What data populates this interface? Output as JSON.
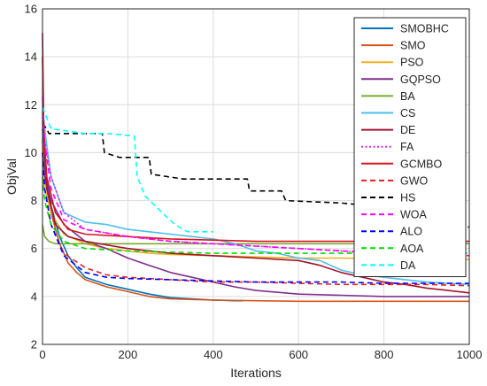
{
  "chart_data": {
    "type": "line",
    "title": "",
    "xlabel": "Iterations",
    "ylabel": "ObjVal",
    "xlim": [
      0,
      1000
    ],
    "ylim": [
      2,
      16
    ],
    "xticks": [
      0,
      200,
      400,
      600,
      800,
      1000
    ],
    "yticks": [
      2,
      4,
      6,
      8,
      10,
      12,
      14,
      16
    ],
    "grid": true,
    "legend_position": "top-right",
    "series": [
      {
        "name": "SMOBHC",
        "color": "#0072BD",
        "dash": "solid",
        "x": [
          0,
          5,
          20,
          40,
          60,
          80,
          100,
          150,
          200,
          250,
          300,
          350,
          400,
          450,
          470
        ],
        "y": [
          11.0,
          9.5,
          7.8,
          6.5,
          5.7,
          5.2,
          4.8,
          4.5,
          4.3,
          4.1,
          3.95,
          3.9,
          3.85,
          3.82,
          3.82
        ]
      },
      {
        "name": "SMO",
        "color": "#D95319",
        "dash": "solid",
        "x": [
          0,
          5,
          20,
          40,
          60,
          80,
          100,
          150,
          200,
          250,
          300,
          400,
          500,
          600,
          800,
          1000
        ],
        "y": [
          10.5,
          9.0,
          7.5,
          6.2,
          5.4,
          5.0,
          4.7,
          4.4,
          4.2,
          4.0,
          3.9,
          3.85,
          3.82,
          3.8,
          3.8,
          3.8
        ]
      },
      {
        "name": "PSO",
        "color": "#EDB120",
        "dash": "solid",
        "x": [
          0,
          5,
          20,
          50,
          100,
          150,
          200,
          250,
          300,
          400,
          500,
          600,
          700,
          800,
          900,
          1000
        ],
        "y": [
          9.0,
          8.5,
          7.5,
          6.6,
          6.2,
          6.0,
          5.9,
          5.8,
          5.75,
          5.7,
          5.65,
          5.6,
          5.6,
          5.58,
          5.55,
          5.55
        ]
      },
      {
        "name": "GQPSO",
        "color": "#7E2F8E",
        "dash": "solid",
        "x": [
          0,
          5,
          20,
          50,
          100,
          150,
          200,
          250,
          300,
          350,
          400,
          450,
          500,
          600,
          700,
          800,
          900,
          1000
        ],
        "y": [
          10.0,
          9.0,
          8.0,
          7.0,
          6.3,
          6.0,
          5.6,
          5.3,
          5.0,
          4.8,
          4.6,
          4.4,
          4.25,
          4.1,
          4.05,
          4.0,
          4.0,
          4.0
        ]
      },
      {
        "name": "BA",
        "color": "#77AC30",
        "dash": "solid",
        "x": [
          0,
          5,
          15,
          30,
          60,
          100,
          200,
          300,
          400,
          500,
          600,
          700,
          800,
          900,
          1000
        ],
        "y": [
          7.0,
          6.5,
          6.3,
          6.2,
          6.2,
          6.2,
          6.2,
          6.2,
          6.2,
          6.2,
          6.2,
          6.2,
          6.2,
          6.2,
          6.2
        ]
      },
      {
        "name": "CS",
        "color": "#4DBEEE",
        "dash": "solid",
        "x": [
          0,
          5,
          20,
          50,
          100,
          150,
          200,
          250,
          300,
          350,
          400,
          450,
          500,
          550,
          600,
          650,
          700,
          750,
          800,
          850,
          900,
          950,
          1000
        ],
        "y": [
          12.0,
          11.0,
          9.0,
          7.5,
          7.1,
          7.0,
          6.8,
          6.7,
          6.6,
          6.5,
          6.4,
          6.2,
          5.9,
          5.8,
          5.6,
          5.5,
          5.1,
          4.9,
          4.8,
          4.7,
          4.6,
          4.55,
          4.5
        ]
      },
      {
        "name": "DE",
        "color": "#A2142F",
        "dash": "solid",
        "x": [
          0,
          3,
          10,
          30,
          60,
          100,
          200,
          300,
          400,
          500,
          600,
          650,
          700,
          750,
          800,
          850,
          900,
          950,
          1000
        ],
        "y": [
          15.0,
          11.0,
          8.5,
          7.0,
          6.5,
          6.3,
          6.0,
          5.8,
          5.7,
          5.6,
          5.5,
          5.3,
          5.0,
          4.8,
          4.6,
          4.5,
          4.35,
          4.25,
          4.15
        ]
      },
      {
        "name": "FA",
        "color": "#E024E0",
        "dash": "dotted",
        "x": [
          0,
          5,
          20,
          50,
          100,
          200,
          300,
          400,
          500,
          600,
          700,
          800,
          900,
          1000
        ],
        "y": [
          11.5,
          10.5,
          9.0,
          7.5,
          6.8,
          6.5,
          6.3,
          6.2,
          6.1,
          6.0,
          5.9,
          5.8,
          5.75,
          5.7
        ]
      },
      {
        "name": "GCMBO",
        "color": "#D9141E",
        "dash": "solid",
        "x": [
          0,
          3,
          10,
          30,
          60,
          100,
          200,
          300,
          400,
          500,
          600,
          700,
          800,
          900,
          1000
        ],
        "y": [
          14.0,
          11.0,
          9.0,
          7.5,
          6.8,
          6.6,
          6.5,
          6.4,
          6.35,
          6.3,
          6.3,
          6.3,
          6.3,
          6.3,
          6.3
        ]
      },
      {
        "name": "GWO",
        "color": "#E62020",
        "dash": "dashed",
        "x": [
          0,
          5,
          20,
          50,
          100,
          150,
          200,
          300,
          400,
          500,
          600,
          700,
          800,
          900,
          1000
        ],
        "y": [
          10.0,
          8.5,
          7.0,
          5.8,
          5.2,
          4.9,
          4.8,
          4.7,
          4.6,
          4.6,
          4.55,
          4.5,
          4.5,
          4.5,
          4.45
        ]
      },
      {
        "name": "HS",
        "color": "#000000",
        "dash": "dashed",
        "x": [
          0,
          10,
          15,
          140,
          145,
          180,
          250,
          255,
          330,
          480,
          485,
          560,
          570,
          700,
          760,
          820,
          880,
          960,
          990,
          1000
        ],
        "y": [
          11.2,
          11.0,
          10.8,
          10.8,
          10.0,
          9.8,
          9.8,
          9.1,
          8.9,
          8.9,
          8.4,
          8.4,
          8.0,
          7.9,
          7.8,
          7.7,
          7.6,
          7.5,
          6.9,
          6.9
        ]
      },
      {
        "name": "WOA",
        "color": "#FF00FF",
        "dash": "dashed",
        "x": [
          0,
          5,
          20,
          50,
          100,
          200,
          300,
          400,
          500,
          600,
          700,
          800,
          900,
          1000
        ],
        "y": [
          12.3,
          10.5,
          8.5,
          7.2,
          6.8,
          6.5,
          6.3,
          6.2,
          6.1,
          6.0,
          5.9,
          5.8,
          5.75,
          5.7
        ]
      },
      {
        "name": "ALO",
        "color": "#0000FF",
        "dash": "dashed",
        "x": [
          0,
          5,
          20,
          50,
          100,
          150,
          200,
          300,
          400,
          500,
          600,
          700,
          800,
          900,
          1000
        ],
        "y": [
          10.0,
          8.5,
          7.0,
          5.7,
          5.0,
          4.8,
          4.75,
          4.7,
          4.65,
          4.6,
          4.6,
          4.6,
          4.55,
          4.55,
          4.55
        ]
      },
      {
        "name": "AOA",
        "color": "#00DD00",
        "dash": "dashed",
        "x": [
          0,
          5,
          20,
          50,
          100,
          200,
          300,
          400,
          500,
          600,
          700,
          800,
          900,
          1000
        ],
        "y": [
          9.0,
          8.0,
          7.0,
          6.3,
          6.0,
          5.9,
          5.85,
          5.8,
          5.8,
          5.8,
          5.8,
          5.8,
          5.8,
          5.8
        ]
      },
      {
        "name": "DA",
        "color": "#00FFFF",
        "dash": "dashed",
        "x": [
          0,
          20,
          100,
          150,
          215,
          222,
          240,
          280,
          310,
          340,
          400
        ],
        "y": [
          11.9,
          11.0,
          10.8,
          10.8,
          10.7,
          9.0,
          8.2,
          7.5,
          7.0,
          6.7,
          6.7
        ]
      }
    ]
  }
}
